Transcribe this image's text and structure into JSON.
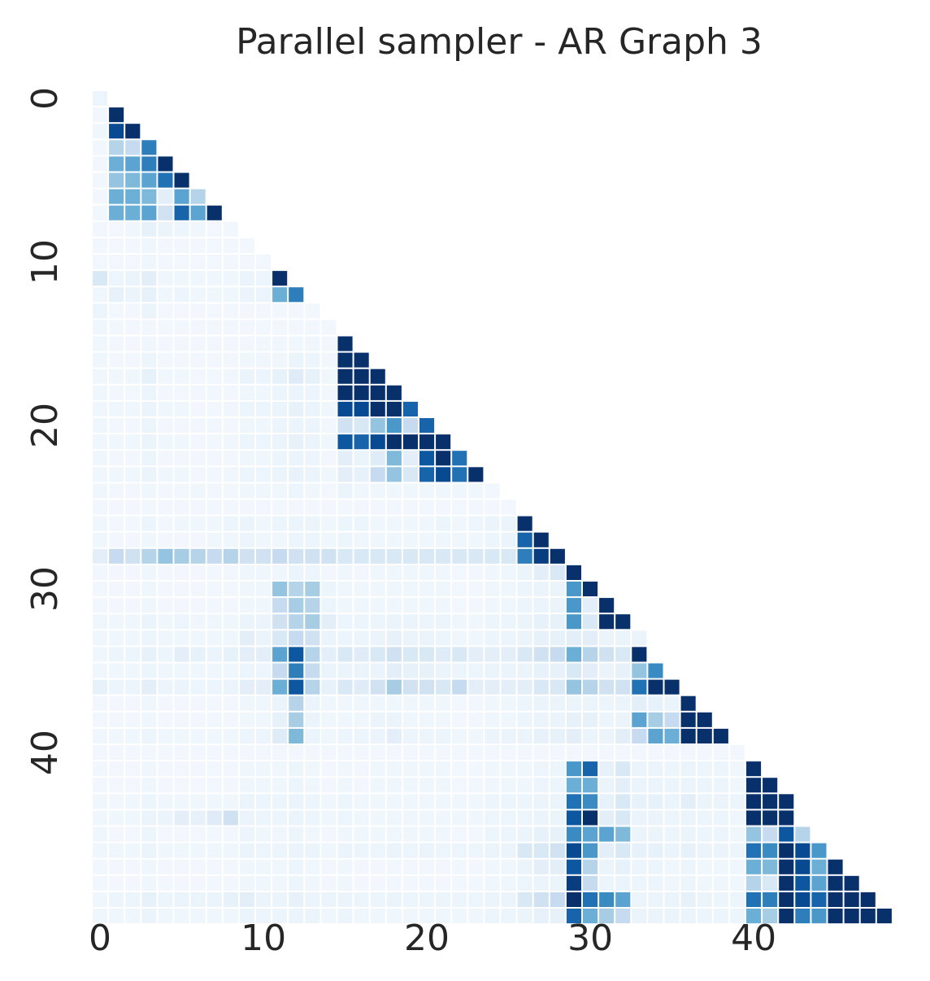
{
  "chart_data": {
    "type": "heatmap",
    "title": "Parallel sampler - AR Graph 3",
    "xlabel": "",
    "ylabel": "",
    "n": 49,
    "mask": "lower-triangular",
    "colormap": "Blues",
    "grid": false,
    "colorbar": false,
    "x_ticks": [
      0,
      10,
      20,
      30,
      40
    ],
    "y_ticks": [
      0,
      10,
      20,
      30,
      40
    ],
    "y_tick_rotation": "vertical",
    "value_range": [
      0,
      1
    ],
    "rows": [
      [
        0.05
      ],
      [
        0.03,
        1.0
      ],
      [
        0.04,
        0.9,
        1.0
      ],
      [
        0.03,
        0.3,
        0.25,
        0.7
      ],
      [
        0.03,
        0.5,
        0.55,
        0.7,
        1.0
      ],
      [
        0.03,
        0.4,
        0.45,
        0.55,
        0.75,
        1.0
      ],
      [
        0.03,
        0.5,
        0.5,
        0.45,
        0.1,
        0.55,
        0.3
      ],
      [
        0.03,
        0.5,
        0.5,
        0.55,
        0.2,
        0.8,
        0.55,
        1.0
      ],
      [
        0.03,
        0.03,
        0.04,
        0.08,
        0.06,
        0.05,
        0.04,
        0.03,
        0.03
      ],
      [
        0.03,
        0.03,
        0.03,
        0.04,
        0.03,
        0.03,
        0.03,
        0.03,
        0.03,
        0.03
      ],
      [
        0.03,
        0.03,
        0.03,
        0.04,
        0.03,
        0.03,
        0.03,
        0.03,
        0.03,
        0.03,
        0.03
      ],
      [
        0.15,
        0.05,
        0.06,
        0.1,
        0.04,
        0.04,
        0.04,
        0.04,
        0.04,
        0.06,
        0.05,
        1.0
      ],
      [
        0.04,
        0.08,
        0.06,
        0.08,
        0.04,
        0.05,
        0.04,
        0.04,
        0.04,
        0.06,
        0.06,
        0.5,
        0.7
      ],
      [
        0.05,
        0.03,
        0.03,
        0.06,
        0.03,
        0.03,
        0.03,
        0.03,
        0.03,
        0.03,
        0.03,
        0.03,
        0.03,
        0.03
      ],
      [
        0.04,
        0.03,
        0.03,
        0.03,
        0.03,
        0.03,
        0.03,
        0.03,
        0.03,
        0.03,
        0.03,
        0.03,
        0.03,
        0.03,
        0.03
      ],
      [
        0.04,
        0.03,
        0.03,
        0.04,
        0.03,
        0.03,
        0.03,
        0.03,
        0.03,
        0.03,
        0.04,
        0.04,
        0.04,
        0.04,
        0.03,
        1.0
      ],
      [
        0.04,
        0.03,
        0.03,
        0.05,
        0.03,
        0.03,
        0.03,
        0.03,
        0.03,
        0.04,
        0.04,
        0.04,
        0.06,
        0.05,
        0.03,
        1.0,
        1.0
      ],
      [
        0.04,
        0.04,
        0.04,
        0.08,
        0.04,
        0.04,
        0.03,
        0.03,
        0.04,
        0.06,
        0.05,
        0.08,
        0.12,
        0.08,
        0.04,
        1.0,
        1.0,
        1.0
      ],
      [
        0.04,
        0.03,
        0.03,
        0.05,
        0.03,
        0.03,
        0.03,
        0.03,
        0.03,
        0.04,
        0.04,
        0.05,
        0.06,
        0.05,
        0.03,
        1.0,
        1.0,
        1.0,
        1.0
      ],
      [
        0.04,
        0.04,
        0.04,
        0.06,
        0.04,
        0.04,
        0.03,
        0.03,
        0.04,
        0.05,
        0.05,
        0.06,
        0.08,
        0.06,
        0.04,
        0.9,
        0.9,
        1.0,
        1.0,
        0.8
      ],
      [
        0.04,
        0.03,
        0.03,
        0.05,
        0.03,
        0.03,
        0.03,
        0.03,
        0.03,
        0.04,
        0.04,
        0.05,
        0.06,
        0.05,
        0.03,
        0.2,
        0.15,
        0.4,
        0.6,
        0.25,
        0.8
      ],
      [
        0.04,
        0.04,
        0.04,
        0.06,
        0.04,
        0.04,
        0.03,
        0.03,
        0.04,
        0.05,
        0.05,
        0.06,
        0.08,
        0.06,
        0.04,
        0.85,
        0.8,
        0.9,
        1.0,
        1.0,
        1.0,
        1.0
      ],
      [
        0.04,
        0.03,
        0.03,
        0.05,
        0.03,
        0.03,
        0.03,
        0.03,
        0.03,
        0.04,
        0.04,
        0.05,
        0.06,
        0.05,
        0.03,
        0.1,
        0.06,
        0.12,
        0.45,
        0.1,
        0.85,
        1.0,
        0.75
      ],
      [
        0.04,
        0.04,
        0.04,
        0.06,
        0.04,
        0.04,
        0.03,
        0.03,
        0.04,
        0.05,
        0.05,
        0.06,
        0.07,
        0.06,
        0.04,
        0.1,
        0.08,
        0.25,
        0.4,
        0.15,
        0.8,
        0.9,
        0.75,
        1.0
      ],
      [
        0.04,
        0.03,
        0.03,
        0.04,
        0.03,
        0.03,
        0.04,
        0.03,
        0.03,
        0.04,
        0.04,
        0.04,
        0.05,
        0.04,
        0.03,
        0.06,
        0.04,
        0.04,
        0.04,
        0.04,
        0.04,
        0.04,
        0.04,
        0.04,
        0.03
      ],
      [
        0.03,
        0.03,
        0.03,
        0.03,
        0.03,
        0.03,
        0.03,
        0.03,
        0.03,
        0.03,
        0.03,
        0.03,
        0.03,
        0.03,
        0.03,
        0.03,
        0.03,
        0.03,
        0.03,
        0.03,
        0.03,
        0.03,
        0.03,
        0.03,
        0.03,
        0.03
      ],
      [
        0.04,
        0.03,
        0.03,
        0.05,
        0.03,
        0.04,
        0.04,
        0.04,
        0.05,
        0.06,
        0.04,
        0.05,
        0.06,
        0.06,
        0.04,
        0.05,
        0.05,
        0.04,
        0.04,
        0.04,
        0.04,
        0.05,
        0.04,
        0.05,
        0.06,
        0.06,
        1.0
      ],
      [
        0.04,
        0.03,
        0.03,
        0.04,
        0.03,
        0.03,
        0.03,
        0.04,
        0.04,
        0.05,
        0.04,
        0.04,
        0.05,
        0.05,
        0.04,
        0.05,
        0.04,
        0.04,
        0.04,
        0.04,
        0.04,
        0.04,
        0.04,
        0.04,
        0.05,
        0.06,
        0.8,
        1.0
      ],
      [
        0.1,
        0.25,
        0.2,
        0.3,
        0.4,
        0.35,
        0.3,
        0.25,
        0.3,
        0.2,
        0.2,
        0.25,
        0.2,
        0.2,
        0.2,
        0.15,
        0.15,
        0.15,
        0.15,
        0.15,
        0.15,
        0.15,
        0.15,
        0.15,
        0.15,
        0.15,
        0.7,
        0.95,
        1.0
      ],
      [
        0.03,
        0.03,
        0.03,
        0.04,
        0.03,
        0.03,
        0.03,
        0.03,
        0.03,
        0.04,
        0.04,
        0.04,
        0.06,
        0.05,
        0.03,
        0.04,
        0.03,
        0.04,
        0.04,
        0.04,
        0.04,
        0.04,
        0.03,
        0.03,
        0.04,
        0.04,
        0.06,
        0.1,
        0.15,
        1.0
      ],
      [
        0.03,
        0.03,
        0.03,
        0.04,
        0.03,
        0.03,
        0.03,
        0.03,
        0.03,
        0.04,
        0.04,
        0.4,
        0.3,
        0.35,
        0.05,
        0.04,
        0.04,
        0.04,
        0.04,
        0.04,
        0.04,
        0.04,
        0.03,
        0.03,
        0.04,
        0.04,
        0.05,
        0.06,
        0.06,
        0.6,
        1.0
      ],
      [
        0.03,
        0.03,
        0.03,
        0.04,
        0.03,
        0.03,
        0.03,
        0.03,
        0.03,
        0.04,
        0.04,
        0.25,
        0.35,
        0.3,
        0.05,
        0.04,
        0.04,
        0.04,
        0.04,
        0.04,
        0.04,
        0.04,
        0.03,
        0.03,
        0.04,
        0.04,
        0.05,
        0.06,
        0.06,
        0.6,
        0.1,
        1.0
      ],
      [
        0.04,
        0.04,
        0.04,
        0.06,
        0.04,
        0.05,
        0.04,
        0.04,
        0.04,
        0.06,
        0.06,
        0.2,
        0.3,
        0.35,
        0.1,
        0.05,
        0.05,
        0.05,
        0.06,
        0.06,
        0.05,
        0.05,
        0.04,
        0.04,
        0.05,
        0.05,
        0.06,
        0.08,
        0.08,
        0.6,
        0.15,
        1.0,
        1.0
      ],
      [
        0.04,
        0.04,
        0.04,
        0.05,
        0.04,
        0.04,
        0.04,
        0.04,
        0.04,
        0.1,
        0.06,
        0.15,
        0.25,
        0.2,
        0.06,
        0.05,
        0.05,
        0.06,
        0.08,
        0.06,
        0.06,
        0.05,
        0.04,
        0.04,
        0.05,
        0.05,
        0.06,
        0.08,
        0.08,
        0.1,
        0.1,
        0.06,
        0.06,
        0.06
      ],
      [
        0.04,
        0.05,
        0.05,
        0.08,
        0.05,
        0.1,
        0.08,
        0.06,
        0.08,
        0.1,
        0.1,
        0.55,
        0.85,
        0.3,
        0.1,
        0.15,
        0.12,
        0.15,
        0.2,
        0.15,
        0.15,
        0.12,
        0.15,
        0.1,
        0.1,
        0.1,
        0.15,
        0.2,
        0.25,
        0.5,
        0.3,
        0.2,
        0.15,
        1.0
      ],
      [
        0.04,
        0.04,
        0.04,
        0.05,
        0.04,
        0.04,
        0.04,
        0.04,
        0.04,
        0.05,
        0.05,
        0.25,
        0.7,
        0.25,
        0.06,
        0.06,
        0.06,
        0.06,
        0.1,
        0.08,
        0.08,
        0.06,
        0.05,
        0.05,
        0.06,
        0.06,
        0.06,
        0.08,
        0.08,
        0.15,
        0.1,
        0.06,
        0.08,
        0.4,
        0.65
      ],
      [
        0.08,
        0.05,
        0.05,
        0.1,
        0.05,
        0.06,
        0.05,
        0.05,
        0.06,
        0.1,
        0.1,
        0.5,
        0.85,
        0.3,
        0.08,
        0.15,
        0.12,
        0.2,
        0.35,
        0.2,
        0.2,
        0.15,
        0.25,
        0.1,
        0.1,
        0.1,
        0.1,
        0.15,
        0.15,
        0.4,
        0.3,
        0.2,
        0.2,
        0.75,
        1.0,
        1.0
      ],
      [
        0.03,
        0.03,
        0.03,
        0.04,
        0.03,
        0.03,
        0.03,
        0.03,
        0.03,
        0.04,
        0.04,
        0.06,
        0.3,
        0.06,
        0.04,
        0.04,
        0.04,
        0.04,
        0.04,
        0.04,
        0.04,
        0.04,
        0.03,
        0.03,
        0.04,
        0.04,
        0.05,
        0.06,
        0.06,
        0.06,
        0.06,
        0.05,
        0.06,
        0.1,
        0.08,
        0.06,
        1.0
      ],
      [
        0.03,
        0.03,
        0.03,
        0.04,
        0.03,
        0.03,
        0.03,
        0.03,
        0.03,
        0.04,
        0.04,
        0.08,
        0.35,
        0.06,
        0.04,
        0.04,
        0.04,
        0.06,
        0.06,
        0.04,
        0.04,
        0.04,
        0.03,
        0.03,
        0.04,
        0.04,
        0.05,
        0.06,
        0.06,
        0.08,
        0.08,
        0.05,
        0.06,
        0.55,
        0.35,
        0.25,
        1.0,
        1.0
      ],
      [
        0.04,
        0.04,
        0.04,
        0.05,
        0.04,
        0.04,
        0.04,
        0.04,
        0.04,
        0.05,
        0.05,
        0.12,
        0.45,
        0.06,
        0.04,
        0.05,
        0.05,
        0.06,
        0.1,
        0.05,
        0.05,
        0.05,
        0.04,
        0.04,
        0.06,
        0.06,
        0.06,
        0.08,
        0.08,
        0.1,
        0.06,
        0.06,
        0.1,
        0.25,
        0.55,
        0.5,
        1.0,
        1.0,
        1.0
      ],
      [
        0.03,
        0.03,
        0.03,
        0.03,
        0.03,
        0.03,
        0.03,
        0.03,
        0.03,
        0.03,
        0.03,
        0.03,
        0.03,
        0.03,
        0.03,
        0.03,
        0.03,
        0.03,
        0.03,
        0.03,
        0.03,
        0.03,
        0.03,
        0.03,
        0.03,
        0.03,
        0.03,
        0.03,
        0.03,
        0.03,
        0.03,
        0.03,
        0.03,
        0.03,
        0.03,
        0.03,
        0.03,
        0.03,
        0.03,
        0.03
      ],
      [
        0.03,
        0.03,
        0.03,
        0.04,
        0.03,
        0.03,
        0.03,
        0.03,
        0.03,
        0.04,
        0.04,
        0.04,
        0.05,
        0.04,
        0.03,
        0.04,
        0.03,
        0.04,
        0.04,
        0.04,
        0.04,
        0.04,
        0.03,
        0.03,
        0.04,
        0.04,
        0.04,
        0.05,
        0.05,
        0.6,
        0.8,
        0.08,
        0.15,
        0.06,
        0.06,
        0.05,
        0.06,
        0.05,
        0.05,
        0.04,
        1.0
      ],
      [
        0.03,
        0.03,
        0.03,
        0.04,
        0.03,
        0.03,
        0.03,
        0.03,
        0.03,
        0.04,
        0.04,
        0.04,
        0.05,
        0.04,
        0.03,
        0.04,
        0.03,
        0.04,
        0.04,
        0.04,
        0.04,
        0.04,
        0.03,
        0.03,
        0.04,
        0.04,
        0.04,
        0.05,
        0.05,
        0.5,
        0.5,
        0.06,
        0.1,
        0.06,
        0.06,
        0.05,
        0.06,
        0.05,
        0.05,
        0.04,
        1.0,
        1.0
      ],
      [
        0.04,
        0.03,
        0.04,
        0.05,
        0.04,
        0.04,
        0.04,
        0.04,
        0.04,
        0.06,
        0.05,
        0.05,
        0.06,
        0.05,
        0.04,
        0.05,
        0.04,
        0.04,
        0.04,
        0.04,
        0.04,
        0.04,
        0.04,
        0.04,
        0.05,
        0.05,
        0.05,
        0.06,
        0.06,
        0.75,
        0.65,
        0.08,
        0.15,
        0.08,
        0.08,
        0.06,
        0.1,
        0.06,
        0.06,
        0.05,
        1.0,
        1.0,
        1.0
      ],
      [
        0.04,
        0.04,
        0.04,
        0.06,
        0.06,
        0.1,
        0.08,
        0.12,
        0.2,
        0.06,
        0.05,
        0.05,
        0.06,
        0.05,
        0.04,
        0.05,
        0.04,
        0.04,
        0.04,
        0.04,
        0.04,
        0.04,
        0.04,
        0.04,
        0.05,
        0.05,
        0.05,
        0.06,
        0.06,
        0.85,
        1.0,
        0.1,
        0.15,
        0.06,
        0.06,
        0.05,
        0.06,
        0.05,
        0.05,
        0.04,
        1.0,
        1.0,
        1.0
      ],
      [
        0.04,
        0.03,
        0.03,
        0.05,
        0.03,
        0.03,
        0.03,
        0.03,
        0.03,
        0.05,
        0.04,
        0.04,
        0.05,
        0.04,
        0.03,
        0.04,
        0.04,
        0.04,
        0.04,
        0.04,
        0.04,
        0.04,
        0.03,
        0.03,
        0.05,
        0.05,
        0.06,
        0.08,
        0.08,
        0.65,
        0.55,
        0.55,
        0.45,
        0.06,
        0.06,
        0.05,
        0.06,
        0.05,
        0.05,
        0.04,
        0.4,
        0.25,
        0.85,
        0.3
      ],
      [
        0.04,
        0.04,
        0.04,
        0.06,
        0.04,
        0.04,
        0.04,
        0.04,
        0.04,
        0.06,
        0.05,
        0.05,
        0.06,
        0.06,
        0.04,
        0.06,
        0.05,
        0.05,
        0.06,
        0.05,
        0.06,
        0.05,
        0.05,
        0.05,
        0.06,
        0.06,
        0.15,
        0.15,
        0.2,
        0.9,
        0.6,
        0.1,
        0.15,
        0.08,
        0.08,
        0.06,
        0.08,
        0.06,
        0.06,
        0.05,
        0.75,
        0.65,
        1.0,
        0.9,
        0.6
      ],
      [
        0.03,
        0.03,
        0.03,
        0.04,
        0.03,
        0.03,
        0.03,
        0.03,
        0.03,
        0.04,
        0.04,
        0.04,
        0.05,
        0.04,
        0.03,
        0.04,
        0.03,
        0.03,
        0.03,
        0.03,
        0.03,
        0.03,
        0.03,
        0.03,
        0.04,
        0.04,
        0.06,
        0.1,
        0.1,
        0.85,
        0.3,
        0.06,
        0.08,
        0.05,
        0.05,
        0.04,
        0.05,
        0.04,
        0.04,
        0.04,
        0.5,
        0.45,
        1.0,
        0.9,
        0.5,
        1.0
      ],
      [
        0.03,
        0.03,
        0.03,
        0.04,
        0.03,
        0.03,
        0.03,
        0.03,
        0.03,
        0.04,
        0.04,
        0.04,
        0.05,
        0.04,
        0.03,
        0.04,
        0.03,
        0.03,
        0.03,
        0.03,
        0.03,
        0.03,
        0.03,
        0.03,
        0.04,
        0.04,
        0.05,
        0.06,
        0.06,
        0.95,
        0.25,
        0.05,
        0.06,
        0.05,
        0.05,
        0.04,
        0.05,
        0.04,
        0.04,
        0.04,
        0.3,
        0.15,
        1.0,
        0.85,
        0.55,
        1.0,
        1.0
      ],
      [
        0.04,
        0.05,
        0.05,
        0.08,
        0.05,
        0.06,
        0.06,
        0.06,
        0.08,
        0.1,
        0.06,
        0.06,
        0.08,
        0.06,
        0.06,
        0.06,
        0.05,
        0.05,
        0.06,
        0.05,
        0.05,
        0.05,
        0.05,
        0.05,
        0.06,
        0.06,
        0.15,
        0.2,
        0.25,
        1.0,
        0.75,
        0.65,
        0.55,
        0.06,
        0.06,
        0.06,
        0.08,
        0.06,
        0.05,
        0.05,
        0.75,
        0.7,
        1.0,
        0.9,
        0.8,
        1.0,
        1.0,
        1.0
      ],
      [
        0.04,
        0.04,
        0.04,
        0.06,
        0.04,
        0.04,
        0.04,
        0.04,
        0.04,
        0.06,
        0.05,
        0.05,
        0.06,
        0.06,
        0.04,
        0.05,
        0.04,
        0.04,
        0.04,
        0.04,
        0.04,
        0.04,
        0.04,
        0.04,
        0.05,
        0.05,
        0.06,
        0.08,
        0.08,
        0.8,
        0.5,
        0.35,
        0.25,
        0.06,
        0.06,
        0.06,
        0.06,
        0.05,
        0.05,
        0.05,
        0.5,
        0.35,
        1.0,
        0.7,
        0.6,
        1.0,
        1.0,
        1.0,
        1.0
      ]
    ]
  }
}
